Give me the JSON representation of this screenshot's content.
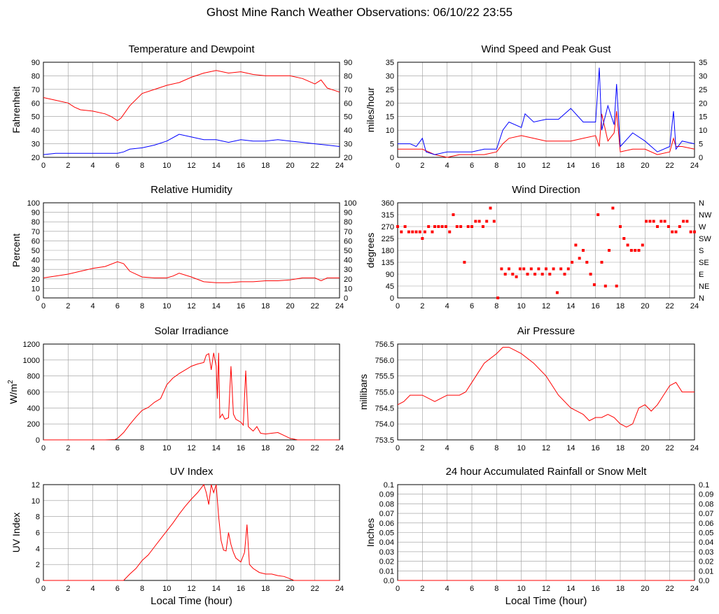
{
  "page": {
    "title": "Ghost Mine Ranch Weather Observations: 06/10/22 23:55"
  },
  "colors": {
    "primary": "#ff0000",
    "secondary": "#0000ff",
    "grid": "#999999"
  },
  "chart_data": [
    {
      "id": "temp",
      "type": "line",
      "title": "Temperature and Dewpoint",
      "ylabel": "Fahrenheit",
      "xlabel": "",
      "xlim": [
        0,
        24
      ],
      "ylim": [
        20,
        90
      ],
      "yticks": [
        "20",
        "30",
        "40",
        "50",
        "60",
        "70",
        "80",
        "90"
      ],
      "right_yticks": [
        "20",
        "30",
        "40",
        "50",
        "60",
        "70",
        "80",
        "90"
      ],
      "series": [
        {
          "x": [
            0,
            1,
            2,
            2.5,
            3,
            4,
            5,
            5.5,
            6,
            6.3,
            7,
            8,
            9,
            10,
            11,
            12,
            13,
            14,
            15,
            16,
            17,
            18,
            19,
            20,
            21,
            22,
            22.5,
            23,
            24
          ],
          "y": [
            64,
            62,
            60,
            57,
            55,
            54,
            52,
            50,
            47,
            49,
            58,
            67,
            70,
            73,
            75,
            79,
            82,
            84,
            82,
            83,
            81,
            80,
            80,
            80,
            78,
            74,
            77,
            71,
            68
          ]
        },
        {
          "x": [
            0,
            1,
            2,
            3,
            4,
            5,
            6,
            6.5,
            7,
            8,
            9,
            10,
            11,
            12,
            13,
            14,
            15,
            16,
            17,
            18,
            19,
            20,
            21,
            22,
            23,
            24
          ],
          "y": [
            22,
            23,
            23,
            23,
            23,
            23,
            23,
            24,
            26,
            27,
            29,
            32,
            37,
            35,
            33,
            33,
            31,
            33,
            32,
            32,
            33,
            32,
            31,
            30,
            29,
            28
          ]
        }
      ]
    },
    {
      "id": "wind",
      "type": "line",
      "title": "Wind Speed and Peak Gust",
      "ylabel": "miles/hour",
      "xlabel": "",
      "xlim": [
        0,
        24
      ],
      "ylim": [
        0,
        35
      ],
      "yticks": [
        "0",
        "5",
        "10",
        "15",
        "20",
        "25",
        "30",
        "35"
      ],
      "right_yticks": [
        "0",
        "5",
        "10",
        "15",
        "20",
        "25",
        "30",
        "35"
      ],
      "series": [
        {
          "x": [
            0,
            1,
            2,
            3,
            4,
            5,
            6,
            7,
            8,
            8.5,
            9,
            10,
            11,
            12,
            13,
            14,
            15,
            16,
            16.3,
            16.5,
            17,
            17.5,
            17.7,
            18,
            19,
            20,
            21,
            22,
            22.3,
            22.5,
            23,
            24
          ],
          "y": [
            3,
            3,
            3,
            1,
            0,
            1,
            1,
            1,
            2,
            5,
            7,
            8,
            7,
            6,
            6,
            6,
            7,
            8,
            4,
            16,
            6,
            9,
            17,
            2,
            3,
            3,
            1,
            2,
            7,
            4,
            4,
            3
          ]
        },
        {
          "x": [
            0,
            1,
            1.5,
            2,
            2.3,
            3,
            4,
            5,
            6,
            7,
            8,
            8.5,
            9,
            10,
            10.3,
            11,
            12,
            13,
            14,
            15,
            16,
            16.3,
            16.5,
            17,
            17.5,
            17.7,
            18,
            19,
            20,
            21,
            22,
            22.3,
            22.5,
            23,
            24
          ],
          "y": [
            5,
            5,
            4,
            7,
            2,
            1,
            2,
            2,
            2,
            3,
            3,
            10,
            13,
            11,
            16,
            13,
            14,
            14,
            18,
            13,
            13,
            33,
            10,
            19,
            12,
            27,
            4,
            9,
            6,
            2,
            4,
            17,
            3,
            6,
            5
          ]
        }
      ]
    },
    {
      "id": "rh",
      "type": "line",
      "title": "Relative Humidity",
      "ylabel": "Percent",
      "xlabel": "",
      "xlim": [
        0,
        24
      ],
      "ylim": [
        0,
        100
      ],
      "yticks": [
        "0",
        "10",
        "20",
        "30",
        "40",
        "50",
        "60",
        "70",
        "80",
        "90",
        "100"
      ],
      "right_yticks": [
        "0",
        "10",
        "20",
        "30",
        "40",
        "50",
        "60",
        "70",
        "80",
        "90",
        "100"
      ],
      "series": [
        {
          "x": [
            0,
            1,
            2,
            3,
            4,
            5,
            6,
            6.5,
            7,
            8,
            9,
            10,
            10.5,
            11,
            12,
            13,
            14,
            15,
            16,
            17,
            18,
            19,
            20,
            21,
            22,
            22.5,
            23,
            24
          ],
          "y": [
            21,
            23,
            25,
            28,
            31,
            33,
            38,
            36,
            28,
            22,
            21,
            21,
            23,
            26,
            22,
            17,
            16,
            16,
            17,
            17,
            18,
            18,
            19,
            21,
            21,
            18,
            21,
            21
          ]
        }
      ]
    },
    {
      "id": "wdir",
      "type": "scatter",
      "title": "Wind Direction",
      "ylabel": "degrees",
      "xlabel": "",
      "xlim": [
        0,
        24
      ],
      "ylim": [
        0,
        360
      ],
      "yticks": [
        "0",
        "45",
        "90",
        "135",
        "180",
        "225",
        "270",
        "315",
        "360"
      ],
      "right_yticks": [
        "N",
        "NE",
        "E",
        "SE",
        "S",
        "SW",
        "W",
        "NW",
        "N"
      ],
      "series": [
        {
          "x": [
            0,
            0.3,
            0.6,
            0.9,
            1.2,
            1.5,
            1.8,
            2.0,
            2.2,
            2.5,
            2.8,
            3.0,
            3.3,
            3.6,
            3.9,
            4.2,
            4.5,
            4.8,
            5.1,
            5.4,
            5.7,
            6.0,
            6.3,
            6.6,
            6.9,
            7.2,
            7.5,
            7.8,
            8.1,
            8.4,
            8.7,
            9.0,
            9.3,
            9.6,
            9.9,
            10.2,
            10.5,
            10.8,
            11.1,
            11.4,
            11.7,
            12.0,
            12.3,
            12.6,
            12.9,
            13.2,
            13.5,
            13.8,
            14.1,
            14.4,
            14.7,
            15.0,
            15.3,
            15.6,
            15.9,
            16.2,
            16.5,
            16.8,
            17.1,
            17.4,
            17.7,
            18.0,
            18.3,
            18.6,
            18.9,
            19.2,
            19.5,
            19.8,
            20.1,
            20.4,
            20.7,
            21.0,
            21.3,
            21.6,
            21.9,
            22.2,
            22.5,
            22.8,
            23.1,
            23.4,
            23.7,
            24.0
          ],
          "y": [
            270,
            250,
            270,
            250,
            250,
            250,
            250,
            225,
            250,
            270,
            250,
            270,
            270,
            270,
            270,
            250,
            315,
            270,
            270,
            135,
            270,
            270,
            290,
            290,
            270,
            290,
            340,
            290,
            0,
            110,
            90,
            110,
            90,
            80,
            110,
            110,
            90,
            110,
            90,
            110,
            90,
            110,
            90,
            110,
            20,
            110,
            90,
            110,
            135,
            200,
            150,
            180,
            135,
            90,
            50,
            315,
            135,
            45,
            180,
            340,
            45,
            270,
            225,
            200,
            180,
            180,
            180,
            200,
            290,
            290,
            290,
            270,
            290,
            290,
            270,
            250,
            250,
            270,
            290,
            290,
            250,
            250
          ]
        }
      ]
    },
    {
      "id": "solar",
      "type": "line",
      "title": "Solar Irradiance",
      "ylabel": "W/m2",
      "xlabel": "",
      "xlim": [
        0,
        24
      ],
      "ylim": [
        0,
        1300
      ],
      "yticks": [
        "0",
        "200",
        "400",
        "600",
        "800",
        "1000",
        "1200"
      ],
      "right_yticks": [],
      "series": [
        {
          "x": [
            0,
            1,
            2,
            3,
            4,
            5,
            5.8,
            6,
            6.5,
            7,
            7.5,
            8,
            8.5,
            9,
            9.5,
            10,
            10.5,
            11,
            11.5,
            12,
            12.5,
            13,
            13.2,
            13.4,
            13.6,
            13.8,
            14,
            14.1,
            14.2,
            14.3,
            14.5,
            14.7,
            15,
            15.2,
            15.4,
            15.6,
            16,
            16.2,
            16.4,
            16.6,
            16.8,
            17,
            17.3,
            17.6,
            18,
            18.5,
            19,
            19.5,
            20,
            20.3,
            20.6,
            21,
            22,
            23,
            24
          ],
          "y": [
            0,
            0,
            0,
            0,
            0,
            0,
            5,
            20,
            100,
            210,
            310,
            400,
            440,
            510,
            560,
            750,
            840,
            900,
            950,
            1000,
            1030,
            1050,
            1150,
            1170,
            950,
            1180,
            1000,
            560,
            1180,
            300,
            350,
            280,
            300,
            1000,
            350,
            280,
            240,
            200,
            940,
            180,
            150,
            120,
            180,
            90,
            80,
            90,
            100,
            60,
            20,
            10,
            0,
            0,
            0,
            0,
            0
          ]
        }
      ]
    },
    {
      "id": "pressure",
      "type": "line",
      "title": "Air Pressure",
      "ylabel": "millibars",
      "xlabel": "",
      "xlim": [
        0,
        24
      ],
      "ylim": [
        753.5,
        756.5
      ],
      "yticks": [
        "753.5",
        "754.0",
        "754.5",
        "755.0",
        "755.5",
        "756.0",
        "756.5"
      ],
      "right_yticks": [],
      "series": [
        {
          "x": [
            0,
            0.5,
            1,
            2,
            3,
            4,
            5,
            5.5,
            6,
            7,
            8,
            8.5,
            9,
            9.5,
            10,
            11,
            12,
            13,
            14,
            14.5,
            15,
            15.5,
            16,
            16.5,
            17,
            17.5,
            18,
            18.5,
            19,
            19.5,
            20,
            20.5,
            21,
            21.5,
            22,
            22.5,
            23,
            24
          ],
          "y": [
            754.6,
            754.7,
            754.9,
            754.9,
            754.7,
            754.9,
            754.9,
            755.0,
            755.3,
            755.9,
            756.2,
            756.4,
            756.4,
            756.3,
            756.2,
            755.9,
            755.5,
            754.9,
            754.5,
            754.4,
            754.3,
            754.1,
            754.2,
            754.2,
            754.3,
            754.2,
            754.0,
            753.9,
            754.0,
            754.5,
            754.6,
            754.4,
            754.6,
            754.9,
            755.2,
            755.3,
            755.0,
            755.0
          ]
        }
      ]
    },
    {
      "id": "uv",
      "type": "line",
      "title": "UV Index",
      "ylabel": "UV Index",
      "xlabel": "Local Time (hour)",
      "xlim": [
        0,
        24
      ],
      "ylim": [
        0,
        12
      ],
      "yticks": [
        "0",
        "2",
        "4",
        "6",
        "8",
        "10",
        "12"
      ],
      "right_yticks": [],
      "series": [
        {
          "x": [
            0,
            1,
            2,
            3,
            4,
            5,
            6,
            6.5,
            7,
            7.5,
            8,
            8.5,
            9,
            9.5,
            10,
            10.5,
            11,
            11.5,
            12,
            12.5,
            13,
            13.2,
            13.4,
            13.6,
            13.8,
            14,
            14.2,
            14.4,
            14.6,
            14.8,
            15,
            15.2,
            15.4,
            15.6,
            16,
            16.3,
            16.5,
            16.7,
            17,
            17.5,
            18,
            18.5,
            19,
            19.5,
            20,
            20.3,
            21,
            22,
            23,
            24
          ],
          "y": [
            0,
            0,
            0,
            0,
            0,
            0,
            0,
            0,
            0.8,
            1.5,
            2.5,
            3.2,
            4.2,
            5.2,
            6.2,
            7.2,
            8.3,
            9.3,
            10.2,
            11,
            12,
            11,
            9.5,
            12,
            11,
            12,
            8,
            5,
            3.8,
            3.7,
            6,
            4.5,
            3.5,
            2.8,
            2.3,
            3.5,
            7,
            2,
            1.5,
            1,
            0.8,
            0.8,
            0.6,
            0.5,
            0.2,
            0,
            0,
            0,
            0,
            0
          ]
        }
      ]
    },
    {
      "id": "rain",
      "type": "line",
      "title": "24 hour Accumulated Rainfall or Snow Melt",
      "ylabel": "Inches",
      "xlabel": "Local Time (hour)",
      "xlim": [
        0,
        24
      ],
      "ylim": [
        0,
        0.1
      ],
      "yticks": [
        "0.0",
        "0.01",
        "0.02",
        "0.03",
        "0.04",
        "0.05",
        "0.06",
        "0.07",
        "0.08",
        "0.09",
        "0.1"
      ],
      "right_yticks": [
        "0.0",
        "0.01",
        "0.02",
        "0.03",
        "0.04",
        "0.05",
        "0.06",
        "0.07",
        "0.08",
        "0.09",
        "0.1"
      ],
      "series": [
        {
          "x": [
            0,
            24
          ],
          "y": [
            0,
            0
          ]
        }
      ]
    }
  ],
  "xticks": [
    "0",
    "2",
    "4",
    "6",
    "8",
    "10",
    "12",
    "14",
    "16",
    "18",
    "20",
    "22",
    "24"
  ]
}
